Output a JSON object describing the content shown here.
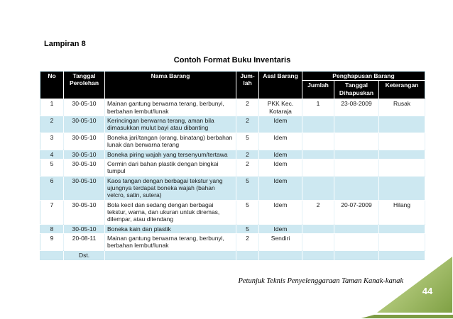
{
  "page": {
    "lampiran_label": "Lampiran 8",
    "title": "Contoh Format Buku Inventaris"
  },
  "table": {
    "headers": {
      "no": "No",
      "tanggal_perolehan": "Tanggal Perolehan",
      "nama_barang": "Nama Barang",
      "jumlah": "Jum-lah",
      "asal_barang": "Asal Barang",
      "penghapusan_group": "Penghapusan Barang",
      "penghapusan_jumlah": "Jumlah",
      "penghapusan_tanggal": "Tanggal Dihapuskan",
      "penghapusan_keterangan": "Keterangan"
    },
    "rows": [
      {
        "no": "1",
        "tanggal": "30-05-10",
        "nama": "Mainan gantung berwarna terang, berbunyi, berbahan lembut/lunak",
        "jumlah": "2",
        "asal": "PKK Kec. Kotaraja",
        "p_jumlah": "1",
        "p_tanggal": "23-08-2009",
        "p_ket": "Rusak"
      },
      {
        "no": "2",
        "tanggal": "30-05-10",
        "nama": "Kerincingan berwarna terang, aman bila dimasukkan mulut bayi atau dibanting",
        "jumlah": "2",
        "asal": "Idem",
        "p_jumlah": "",
        "p_tanggal": "",
        "p_ket": ""
      },
      {
        "no": "3",
        "tanggal": "30-05-10",
        "nama": "Boneka jari/tangan (orang, binatang) berbahan lunak dan berwarna terang",
        "jumlah": "5",
        "asal": "Idem",
        "p_jumlah": "",
        "p_tanggal": "",
        "p_ket": ""
      },
      {
        "no": "4",
        "tanggal": "30-05-10",
        "nama": "Boneka piring wajah yang tersenyum/tertawa",
        "jumlah": "2",
        "asal": "Idem",
        "p_jumlah": "",
        "p_tanggal": "",
        "p_ket": ""
      },
      {
        "no": "5",
        "tanggal": "30-05-10",
        "nama": "Cermin dari bahan plastik dengan bingkai tumpul",
        "jumlah": "2",
        "asal": "Idem",
        "p_jumlah": "",
        "p_tanggal": "",
        "p_ket": ""
      },
      {
        "no": "6",
        "tanggal": "30-05-10",
        "nama": "Kaos tangan dengan berbagai tekstur yang ujungnya terdapat boneka wajah (bahan velcro, satin, sutera)",
        "jumlah": "5",
        "asal": "Idem",
        "p_jumlah": "",
        "p_tanggal": "",
        "p_ket": ""
      },
      {
        "no": "7",
        "tanggal": "30-05-10",
        "nama": "Bola kecil dan sedang dengan berbagai tekstur, warna, dan ukuran untuk diremas, dilempar, atau ditendang",
        "jumlah": "5",
        "asal": "Idem",
        "p_jumlah": "2",
        "p_tanggal": "20-07-2009",
        "p_ket": "Hilang"
      },
      {
        "no": "8",
        "tanggal": "30-05-10",
        "nama": "Boneka kain dan plastik",
        "jumlah": "5",
        "asal": "Idem",
        "p_jumlah": "",
        "p_tanggal": "",
        "p_ket": ""
      },
      {
        "no": "9",
        "tanggal": "20-08-11",
        "nama": "Mainan gantung berwarna terang, berbunyi, berbahan lembut/lunak",
        "jumlah": "2",
        "asal": "Sendiri",
        "p_jumlah": "",
        "p_tanggal": "",
        "p_ket": ""
      },
      {
        "no": "",
        "tanggal": "Dst.",
        "nama": "",
        "jumlah": "",
        "asal": "",
        "p_jumlah": "",
        "p_tanggal": "",
        "p_ket": ""
      }
    ]
  },
  "footer": {
    "text": "Petunjuk Teknis Penyelenggaraan Taman Kanak-kanak",
    "page_number": "44"
  },
  "colors": {
    "header_bg": "#000000",
    "header_text": "#ffffff",
    "row_alt_blue": "#cde8f1",
    "triangle_light_green": "#e3edc6",
    "triangle_dark_green": "#7fa044"
  }
}
